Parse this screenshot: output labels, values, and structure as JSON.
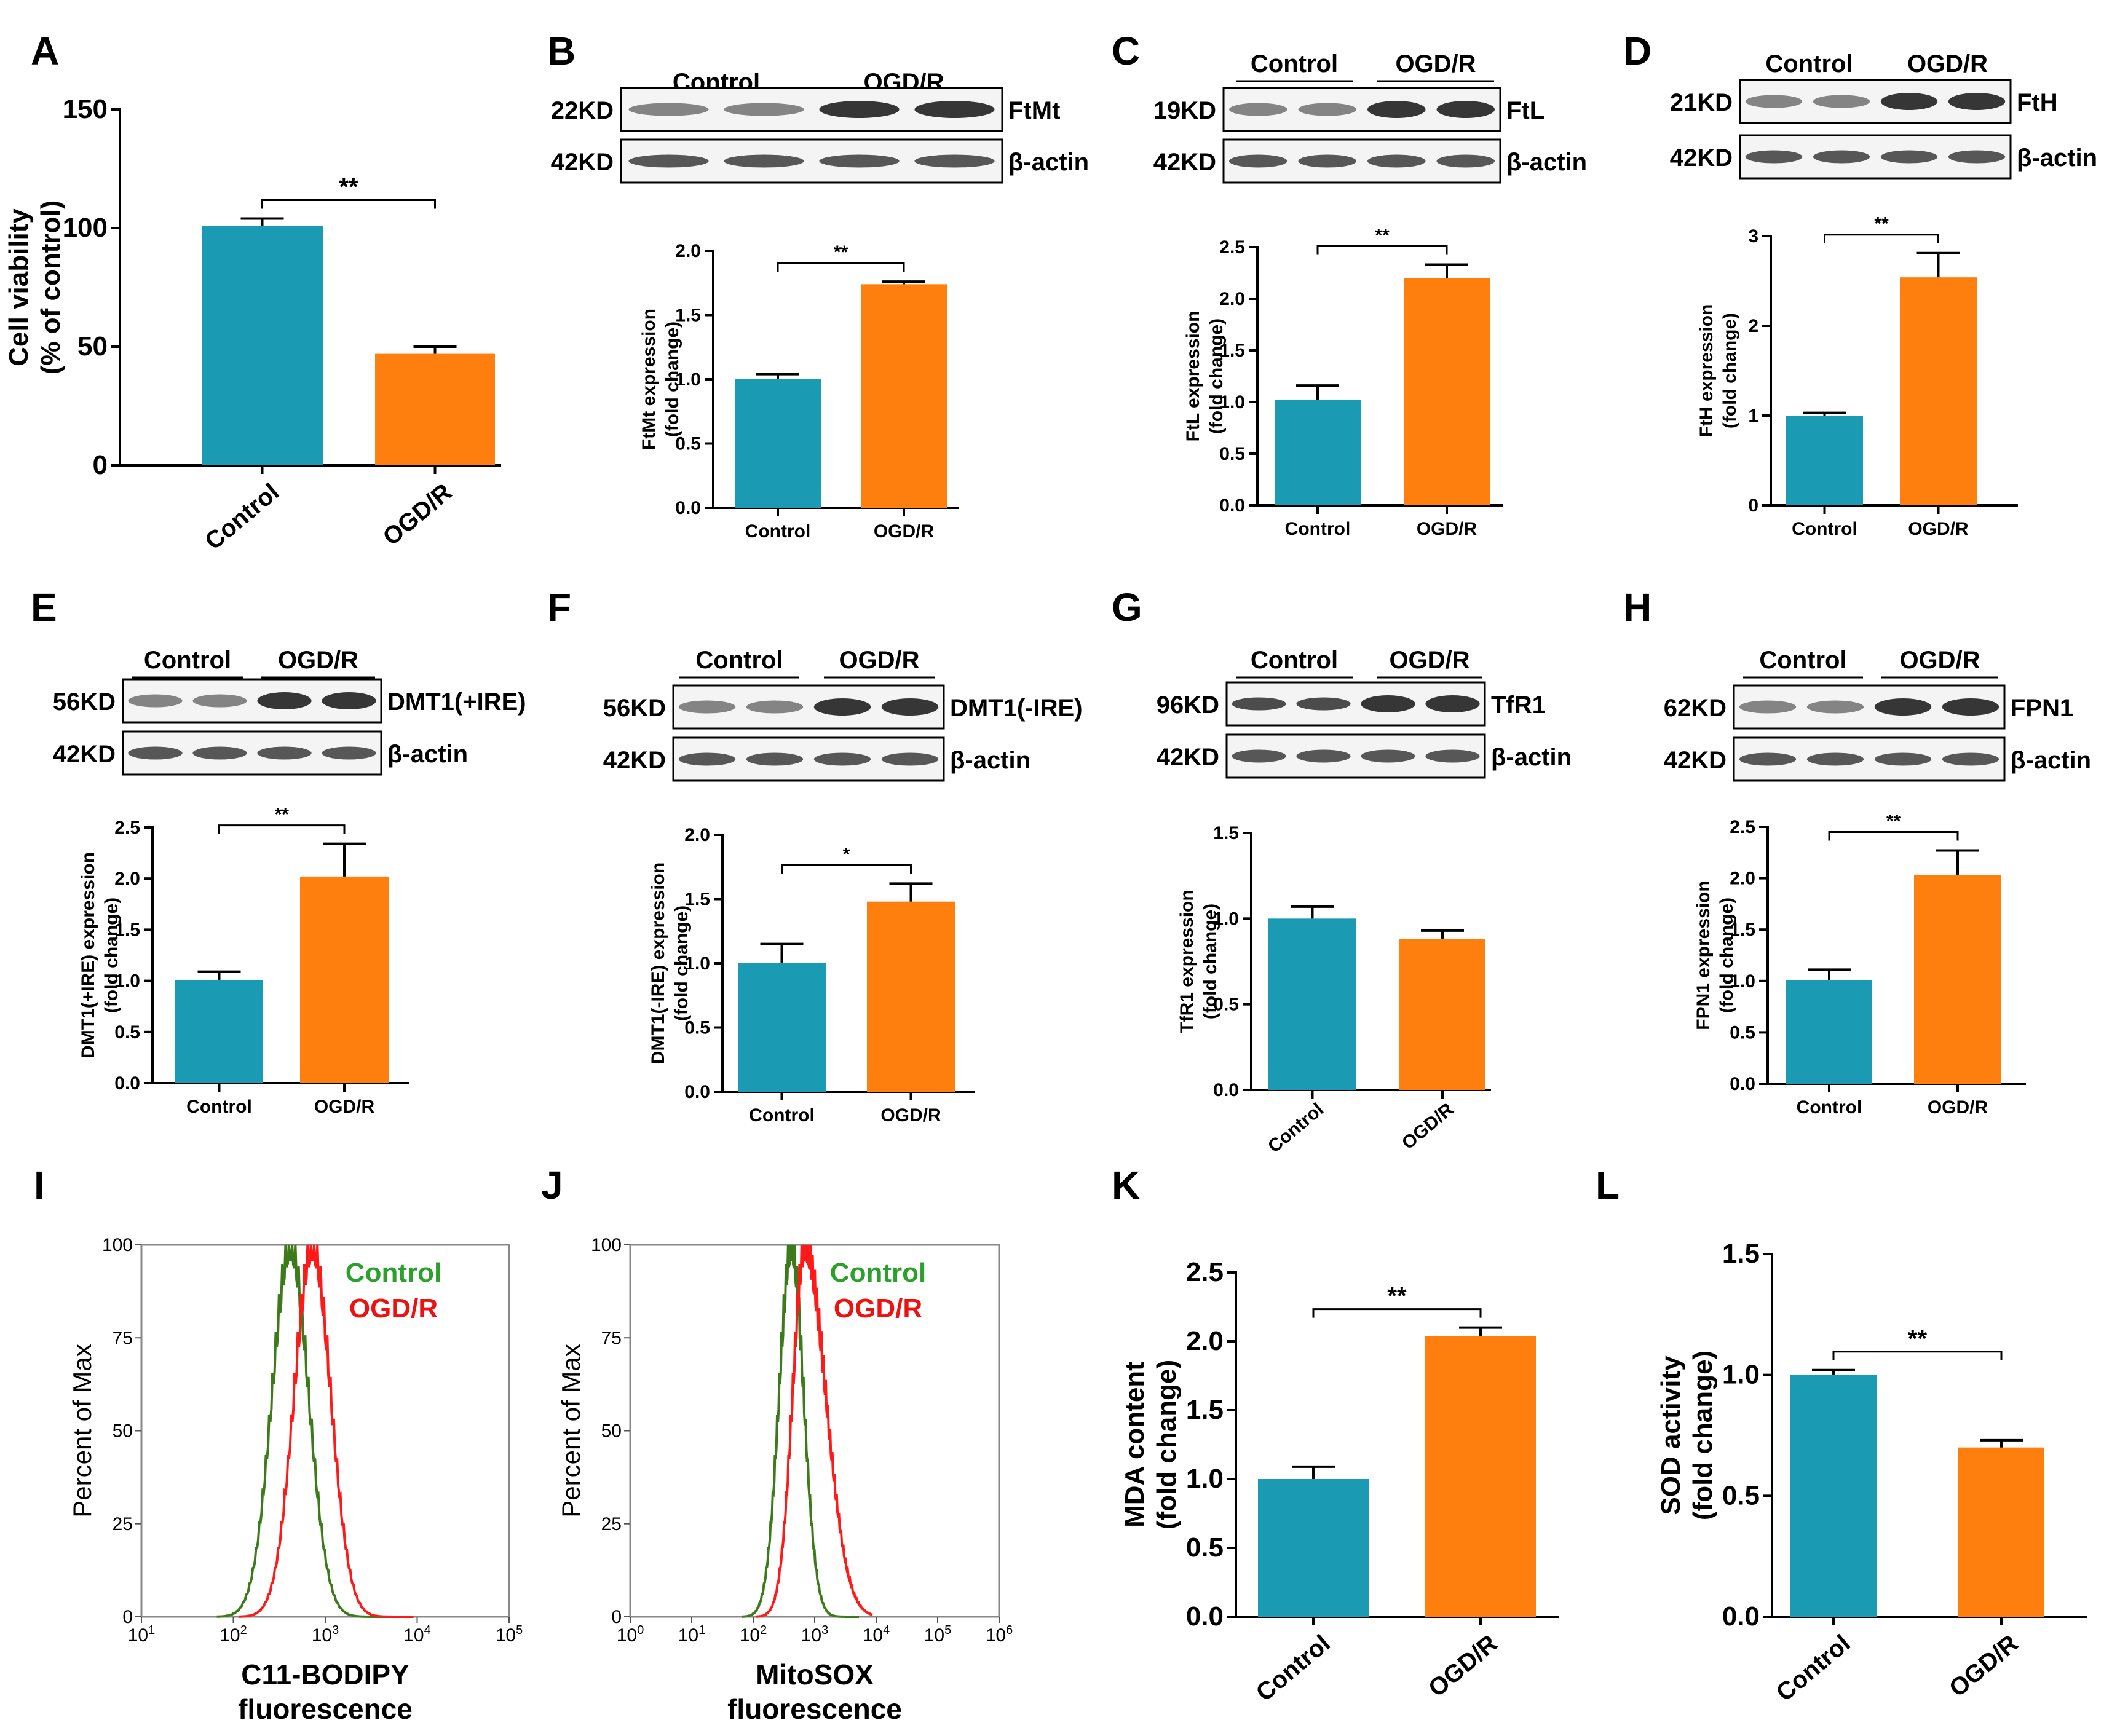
{
  "colors": {
    "control": "#1a9bb3",
    "ogdr": "#ff7f0e",
    "hist_control": "#3d7a1a",
    "hist_ogdr": "#ff1a1a",
    "legend_control": "#2ca02c",
    "legend_ogdr": "#ee1111"
  },
  "chart_data": [
    {
      "panel": "A",
      "type": "bar",
      "categories": [
        "Control",
        "OGD/R"
      ],
      "values": [
        101,
        47
      ],
      "errors": [
        3,
        3
      ],
      "ylabel": [
        "Cell viability",
        "(% of control)"
      ],
      "yticks": [
        "0",
        "50",
        "100",
        "150"
      ],
      "ylim": [
        0,
        150
      ],
      "sig": "**"
    },
    {
      "panel": "B",
      "type": "bar",
      "categories": [
        "Control",
        "OGD/R"
      ],
      "values": [
        1.0,
        1.74
      ],
      "errors": [
        0.04,
        0.02
      ],
      "ylabel": [
        "FtMt expression",
        "(fold change)"
      ],
      "yticks": [
        "0.0",
        "0.5",
        "1.0",
        "1.5",
        "2.0"
      ],
      "ylim": [
        0,
        2
      ],
      "sig": "**",
      "blot": {
        "header": [
          "Control",
          "OGD/R"
        ],
        "rows": [
          {
            "kd": "22KD",
            "protein": "FtMt"
          },
          {
            "kd": "42KD",
            "protein": "β-actin"
          }
        ]
      }
    },
    {
      "panel": "C",
      "type": "bar",
      "categories": [
        "Control",
        "OGD/R"
      ],
      "values": [
        1.02,
        2.2
      ],
      "errors": [
        0.14,
        0.13
      ],
      "ylabel": [
        "FtL expression",
        "(fold change)"
      ],
      "yticks": [
        "0.0",
        "0.5",
        "1.0",
        "1.5",
        "2.0",
        "2.5"
      ],
      "ylim": [
        0,
        2.5
      ],
      "sig": "**",
      "blot": {
        "header": [
          "Control",
          "OGD/R"
        ],
        "rows": [
          {
            "kd": "19KD",
            "protein": "FtL"
          },
          {
            "kd": "42KD",
            "protein": "β-actin"
          }
        ]
      }
    },
    {
      "panel": "D",
      "type": "bar",
      "categories": [
        "Control",
        "OGD/R"
      ],
      "values": [
        1.0,
        2.54
      ],
      "errors": [
        0.03,
        0.27
      ],
      "ylabel": [
        "FtH expression",
        "(fold change)"
      ],
      "yticks": [
        "0",
        "1",
        "2",
        "3"
      ],
      "ylim": [
        0,
        3
      ],
      "sig": "**",
      "blot": {
        "header": [
          "Control",
          "OGD/R"
        ],
        "rows": [
          {
            "kd": "21KD",
            "protein": "FtH"
          },
          {
            "kd": "42KD",
            "protein": "β-actin"
          }
        ]
      }
    },
    {
      "panel": "E",
      "type": "bar",
      "categories": [
        "Control",
        "OGD/R"
      ],
      "values": [
        1.01,
        2.02
      ],
      "errors": [
        0.08,
        0.32
      ],
      "ylabel": [
        "DMT1(+IRE) expression",
        "(fold change)"
      ],
      "yticks": [
        "0.0",
        "0.5",
        "1.0",
        "1.5",
        "2.0",
        "2.5"
      ],
      "ylim": [
        0,
        2.5
      ],
      "sig": "**",
      "blot": {
        "header": [
          "Control",
          "OGD/R"
        ],
        "rows": [
          {
            "kd": "56KD",
            "protein": "DMT1(+IRE)"
          },
          {
            "kd": "42KD",
            "protein": "β-actin"
          }
        ]
      }
    },
    {
      "panel": "F",
      "type": "bar",
      "categories": [
        "Control",
        "OGD/R"
      ],
      "values": [
        1.0,
        1.48
      ],
      "errors": [
        0.15,
        0.14
      ],
      "ylabel": [
        "DMT1(-IRE) expression",
        "(fold change)"
      ],
      "yticks": [
        "0.0",
        "0.5",
        "1.0",
        "1.5",
        "2.0"
      ],
      "ylim": [
        0,
        2
      ],
      "sig": "*",
      "blot": {
        "header": [
          "Control",
          "OGD/R"
        ],
        "rows": [
          {
            "kd": "56KD",
            "protein": "DMT1(-IRE)"
          },
          {
            "kd": "42KD",
            "protein": "β-actin"
          }
        ]
      }
    },
    {
      "panel": "G",
      "type": "bar",
      "categories": [
        "Control",
        "OGD/R"
      ],
      "values": [
        1.0,
        0.88
      ],
      "errors": [
        0.07,
        0.05
      ],
      "ylabel": [
        "TfR1 expression",
        "(fold change)"
      ],
      "yticks": [
        "0.0",
        "0.5",
        "1.0",
        "1.5"
      ],
      "ylim": [
        0,
        1.5
      ],
      "sig": "",
      "blot": {
        "header": [
          "Control",
          "OGD/R"
        ],
        "rows": [
          {
            "kd": "96KD",
            "protein": "TfR1"
          },
          {
            "kd": "42KD",
            "protein": "β-actin"
          }
        ]
      }
    },
    {
      "panel": "H",
      "type": "bar",
      "categories": [
        "Control",
        "OGD/R"
      ],
      "values": [
        1.01,
        2.03
      ],
      "errors": [
        0.1,
        0.24
      ],
      "ylabel": [
        "FPN1 expression",
        "(fold change)"
      ],
      "yticks": [
        "0.0",
        "0.5",
        "1.0",
        "1.5",
        "2.0",
        "2.5"
      ],
      "ylim": [
        0,
        2.5
      ],
      "sig": "**",
      "blot": {
        "header": [
          "Control",
          "OGD/R"
        ],
        "rows": [
          {
            "kd": "62KD",
            "protein": "FPN1"
          },
          {
            "kd": "42KD",
            "protein": "β-actin"
          }
        ]
      }
    },
    {
      "panel": "I",
      "type": "histogram",
      "ylabel": "Percent of Max",
      "xlabel": [
        "C11-BODIPY",
        "fluorescence"
      ],
      "yticks": [
        "0",
        "25",
        "50",
        "75",
        "100"
      ],
      "xticks": [
        "10",
        "10",
        "10",
        "10",
        "10"
      ],
      "xexp": [
        "1",
        "2",
        "3",
        "4",
        "5"
      ],
      "xrange_log10": [
        1,
        5
      ],
      "legend": [
        "Control",
        "OGD/R"
      ],
      "peaks_log10": [
        2.62,
        2.86
      ]
    },
    {
      "panel": "J",
      "type": "histogram",
      "ylabel": "Percent of Max",
      "xlabel": [
        "MitoSOX",
        "fluorescence"
      ],
      "yticks": [
        "0",
        "25",
        "50",
        "75",
        "100"
      ],
      "xticks": [
        "10",
        "10",
        "10",
        "10",
        "10",
        "10",
        "10"
      ],
      "xexp": [
        "0",
        "1",
        "2",
        "3",
        "4",
        "5",
        "6"
      ],
      "xrange_log10": [
        0,
        6
      ],
      "legend": [
        "Control",
        "OGD/R"
      ],
      "peaks_log10": [
        2.62,
        2.84
      ]
    },
    {
      "panel": "K",
      "type": "bar",
      "categories": [
        "Control",
        "OGD/R"
      ],
      "values": [
        1.0,
        2.04
      ],
      "errors": [
        0.09,
        0.06
      ],
      "ylabel": [
        "MDA content",
        "(fold change)"
      ],
      "yticks": [
        "0.0",
        "0.5",
        "1.0",
        "1.5",
        "2.0",
        "2.5"
      ],
      "ylim": [
        0,
        2.5
      ],
      "sig": "**"
    },
    {
      "panel": "L",
      "type": "bar",
      "categories": [
        "Control",
        "OGD/R"
      ],
      "values": [
        1.0,
        0.7
      ],
      "errors": [
        0.02,
        0.03
      ],
      "ylabel": [
        "SOD activity",
        "(fold change)"
      ],
      "yticks": [
        "0.0",
        "0.5",
        "1.0",
        "1.5"
      ],
      "ylim": [
        0,
        1.5
      ],
      "sig": "**"
    }
  ]
}
